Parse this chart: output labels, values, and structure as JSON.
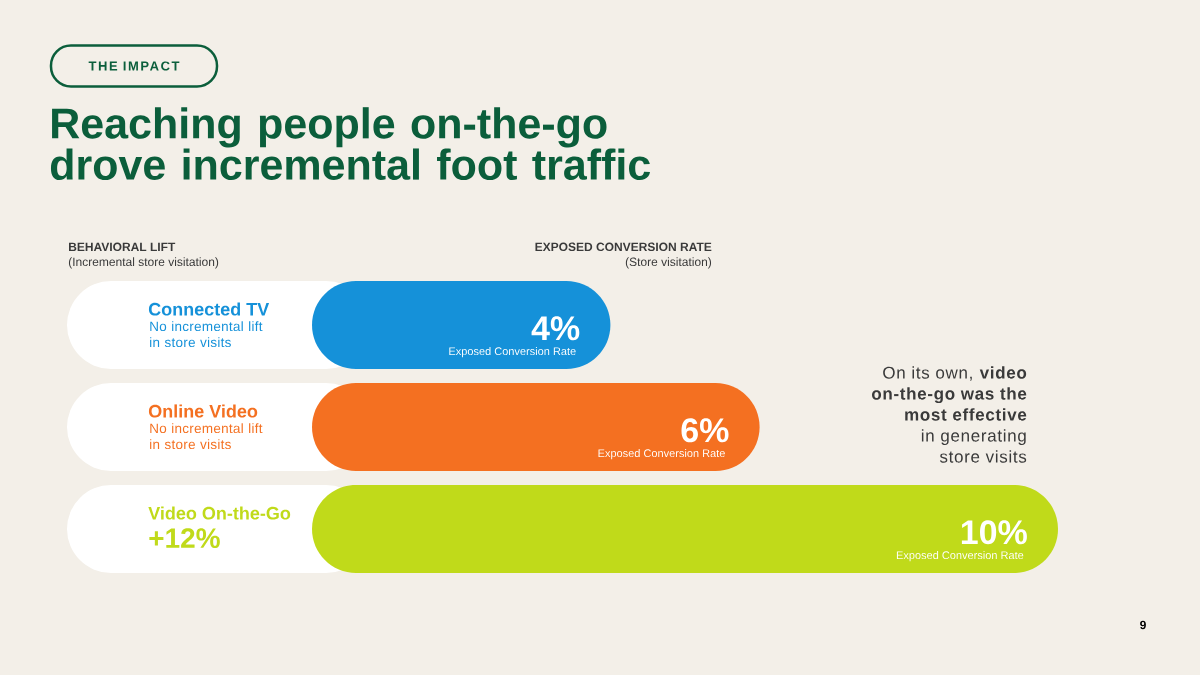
{
  "chart_data": {
    "type": "bar",
    "orientation": "horizontal",
    "title": "Reaching people on-the-go drove incremental foot traffic",
    "xlabel": "EXPOSED CONVERSION RATE",
    "ylabel": "BEHAVIORAL LIFT",
    "categories": [
      "Connected TV",
      "Online Video",
      "Video On-the-Go"
    ],
    "values": [
      4,
      6,
      10
    ],
    "colors": [
      "#1591d9",
      "#f47021",
      "#c0da1a"
    ],
    "value_labels": [
      "4%",
      "6%",
      "10%"
    ],
    "xlim": [
      0,
      10
    ],
    "tick_labels": "y",
    "annotations": [
      "THE IMPACT",
      "(Incremental store visitation)",
      "(Store visitation)",
      "No incremental lift in store visits",
      "No incremental lift in store visits",
      "+12%",
      "Exposed Conversion Rate",
      "Exposed Conversion Rate",
      "Exposed Conversion Rate",
      "On its own, **video on-the-go was the most effective** in generating store visits",
      "9"
    ]
  }
}
